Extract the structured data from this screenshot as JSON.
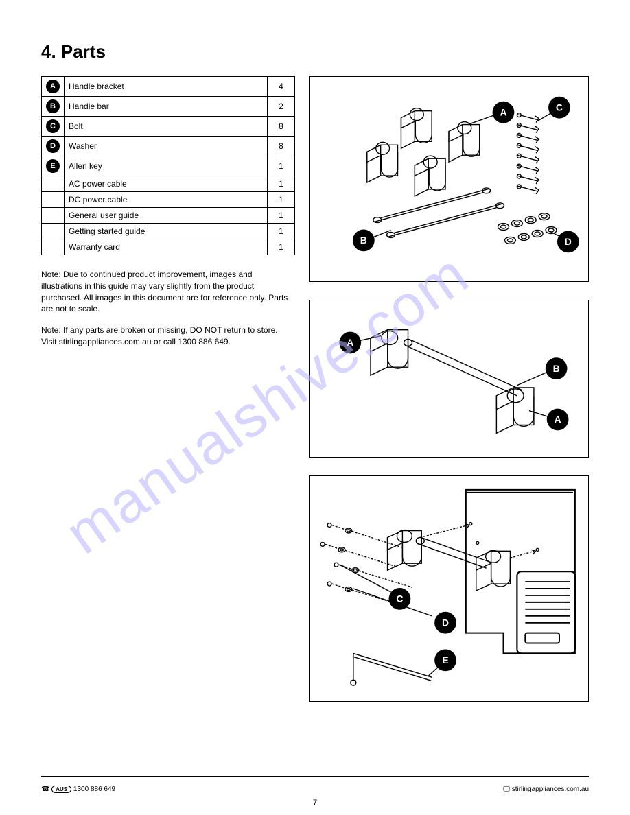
{
  "section": {
    "title": "4. Parts"
  },
  "table": {
    "rows": [
      {
        "letter": "A",
        "desc": "Handle bracket",
        "qty": "4"
      },
      {
        "letter": "B",
        "desc": "Handle bar",
        "qty": "2"
      },
      {
        "letter": "C",
        "desc": "Bolt",
        "qty": "8"
      },
      {
        "letter": "D",
        "desc": "Washer",
        "qty": "8"
      },
      {
        "letter": "E",
        "desc": "Allen key",
        "qty": "1"
      },
      {
        "letter": "",
        "desc": "AC power cable",
        "qty": "1"
      },
      {
        "letter": "",
        "desc": "DC power cable",
        "qty": "1"
      },
      {
        "letter": "",
        "desc": "General user guide",
        "qty": "1"
      },
      {
        "letter": "",
        "desc": "Getting started guide",
        "qty": "1"
      },
      {
        "letter": "",
        "desc": "Warranty card",
        "qty": "1"
      }
    ]
  },
  "notes": {
    "n1": "Note: Due to continued product improvement, images and illustrations in this guide may vary slightly from the product purchased. All images in this document are for reference only. Parts are not to scale.",
    "n2": "Note: If any parts are broken or missing, DO NOT return to store. Visit stirlingappliances.com.au or call 1300 886 649."
  },
  "illus1": {
    "labels": {
      "A": "A",
      "B": "B",
      "C": "C",
      "D": "D"
    }
  },
  "illus2": {
    "labels": {
      "A": "A",
      "B": "B"
    }
  },
  "illus3": {
    "labels": {
      "C": "C",
      "D": "D",
      "E": "E"
    }
  },
  "footer": {
    "left_phone_icon": "☎",
    "left_badge": "AUS",
    "left_text": "1300 886 649",
    "right_icon": "🖵",
    "right_text": "stirlingappliances.com.au"
  },
  "page_number": "7",
  "watermark_text": "manualshive.com",
  "colors": {
    "watermark": "#b8b2ff",
    "ink": "#000000",
    "bg": "#ffffff"
  }
}
